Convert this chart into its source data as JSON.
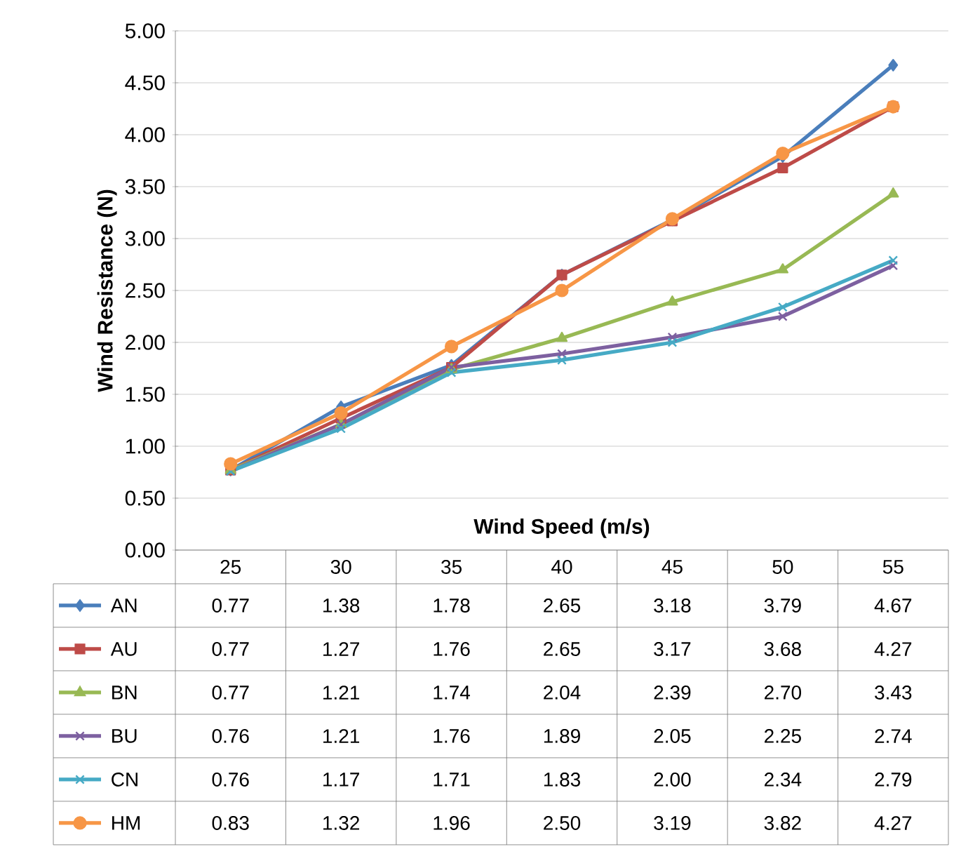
{
  "chart_data": {
    "type": "line",
    "xlabel": "Wind Speed (m/s)",
    "ylabel": "Wind Resistance (N)",
    "categories": [
      "25",
      "30",
      "35",
      "40",
      "45",
      "50",
      "55"
    ],
    "ylim": [
      0,
      5
    ],
    "yticks": [
      {
        "value": 0,
        "label": "0.00"
      },
      {
        "value": 0.5,
        "label": "0.50"
      },
      {
        "value": 1,
        "label": "1.00"
      },
      {
        "value": 1.5,
        "label": "1.50"
      },
      {
        "value": 2,
        "label": "2.00"
      },
      {
        "value": 2.5,
        "label": "2.50"
      },
      {
        "value": 3,
        "label": "3.00"
      },
      {
        "value": 3.5,
        "label": "3.50"
      },
      {
        "value": 4,
        "label": "4.00"
      },
      {
        "value": 4.5,
        "label": "4.50"
      },
      {
        "value": 5,
        "label": "5.00"
      }
    ],
    "grid": "y",
    "legend": "bottom left",
    "series": [
      {
        "name": "AN",
        "color": "#4a7ebb",
        "marker": "diamond",
        "values": [
          0.77,
          1.38,
          1.78,
          2.65,
          3.18,
          3.79,
          4.67
        ],
        "value_labels": [
          "0.77",
          "1.38",
          "1.78",
          "2.65",
          "3.18",
          "3.79",
          "4.67"
        ]
      },
      {
        "name": "AU",
        "color": "#be4b48",
        "marker": "square",
        "values": [
          0.77,
          1.27,
          1.76,
          2.65,
          3.17,
          3.68,
          4.27
        ],
        "value_labels": [
          "0.77",
          "1.27",
          "1.76",
          "2.65",
          "3.17",
          "3.68",
          "4.27"
        ]
      },
      {
        "name": "BN",
        "color": "#98b954",
        "marker": "triangle",
        "values": [
          0.77,
          1.21,
          1.74,
          2.04,
          2.39,
          2.7,
          3.43
        ],
        "value_labels": [
          "0.77",
          "1.21",
          "1.74",
          "2.04",
          "2.39",
          "2.70",
          "3.43"
        ]
      },
      {
        "name": "BU",
        "color": "#7d60a0",
        "marker": "cross",
        "values": [
          0.76,
          1.21,
          1.76,
          1.89,
          2.05,
          2.25,
          2.74
        ],
        "value_labels": [
          "0.76",
          "1.21",
          "1.76",
          "1.89",
          "2.05",
          "2.25",
          "2.74"
        ]
      },
      {
        "name": "CN",
        "color": "#46aac5",
        "marker": "cross",
        "values": [
          0.76,
          1.17,
          1.71,
          1.83,
          2.0,
          2.34,
          2.79
        ],
        "value_labels": [
          "0.76",
          "1.17",
          "1.71",
          "1.83",
          "2.00",
          "2.34",
          "2.79"
        ]
      },
      {
        "name": "HM",
        "color": "#f79646",
        "marker": "circle",
        "values": [
          0.83,
          1.32,
          1.96,
          2.5,
          3.19,
          3.82,
          4.27
        ],
        "value_labels": [
          "0.83",
          "1.32",
          "1.96",
          "2.50",
          "3.19",
          "3.82",
          "4.27"
        ]
      }
    ]
  }
}
